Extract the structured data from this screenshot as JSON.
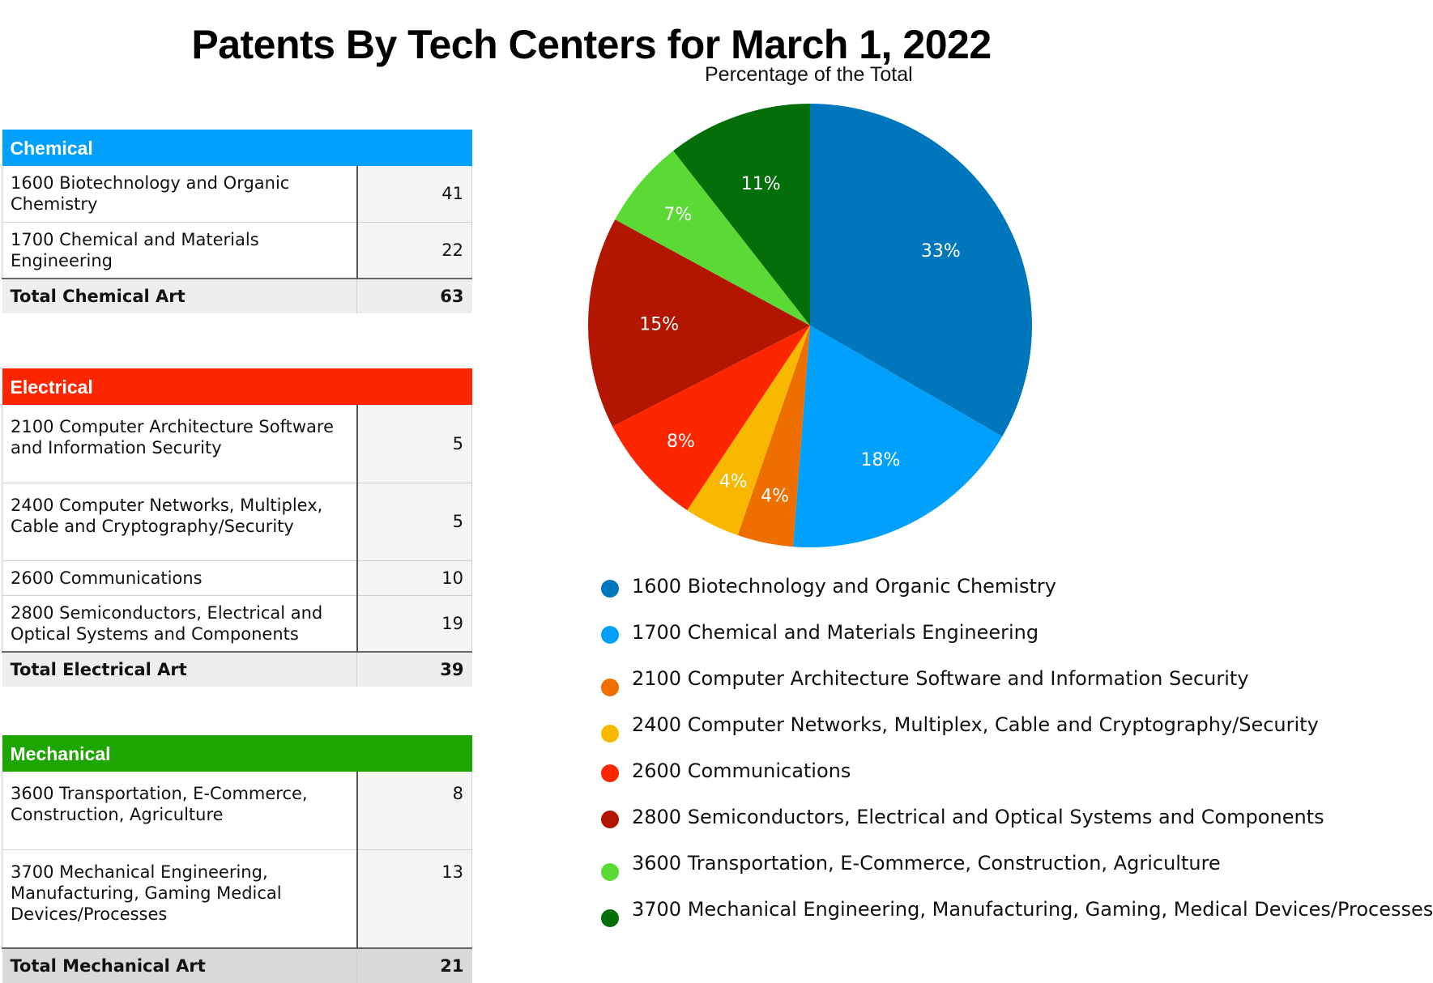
{
  "chart_data": {
    "type": "pie",
    "title": "Patents By Tech Centers for March 1, 2022",
    "subtitle": "Percentage of the Total",
    "categories": [
      "1600 Biotechnology and Organic Chemistry",
      "1700 Chemical and Materials Engineering",
      "2100 Computer Architecture Software and Information Security",
      "2400 Computer Networks, Multiplex, Cable and Cryptography/Security",
      "2600 Communications",
      "2800 Semiconductors, Electrical and Optical Systems and Components",
      "3600 Transportation, E-Commerce, Construction, Agriculture",
      "3700 Mechanical Engineering, Manufacturing, Gaming, Medical Devices/Processes"
    ],
    "values": [
      41,
      22,
      5,
      5,
      10,
      19,
      8,
      13
    ],
    "data_labels": [
      "33%",
      "18%",
      "4%",
      "4%",
      "8%",
      "15%",
      "7%",
      "11%"
    ],
    "colors": [
      "#0077bd",
      "#00a0fb",
      "#ee6e00",
      "#f8b800",
      "#fd2600",
      "#b21500",
      "#5bd935",
      "#046e08"
    ],
    "legend_position": "bottom"
  },
  "tables": [
    {
      "id": "chem",
      "header": "Chemical",
      "color": "#00a0fb",
      "rows": [
        {
          "name": "1600 Biotechnology and Organic Chemistry",
          "value": "41"
        },
        {
          "name": "1700 Chemical and Materials Engineering",
          "value": "22"
        }
      ],
      "total_label": "Total Chemical Art",
      "total_value": "63"
    },
    {
      "id": "elec",
      "header": "Electrical",
      "color": "#fd2600",
      "rows": [
        {
          "name": "2100 Computer Architecture Software and Information Security",
          "value": "5"
        },
        {
          "name": "2400 Computer Networks, Multiplex, Cable and Cryptography/Security",
          "value": "5"
        },
        {
          "name": "2600 Communications",
          "value": "10"
        },
        {
          "name": "2800 Semiconductors, Electrical and Optical Systems and Components",
          "value": "19"
        }
      ],
      "total_label": "Total Electrical Art",
      "total_value": "39"
    },
    {
      "id": "mech",
      "header": "Mechanical",
      "color": "#1ea600",
      "rows": [
        {
          "name": "3600 Transportation, E-Commerce, Construction, Agriculture",
          "value": "8"
        },
        {
          "name": "3700 Mechanical Engineering, Manufacturing, Gaming Medical Devices/Processes",
          "value": "13"
        }
      ],
      "total_label": "Total Mechanical Art",
      "total_value": "21"
    }
  ]
}
